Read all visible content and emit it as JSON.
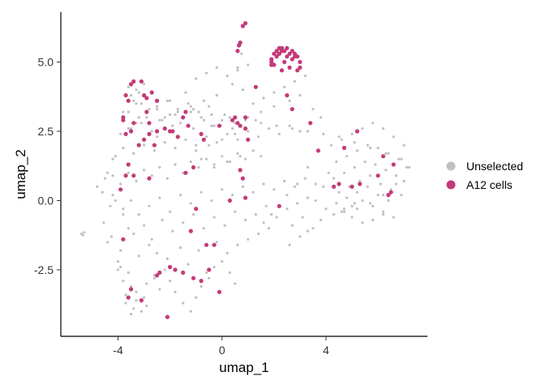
{
  "chart_data": {
    "type": "scatter",
    "title": "",
    "xlabel": "umap_1",
    "ylabel": "umap_2",
    "xlim": [
      -6.2,
      7.9
    ],
    "ylim": [
      -4.9,
      6.8
    ],
    "xticks": [
      {
        "value": -4,
        "label": "-4"
      },
      {
        "value": 0,
        "label": "0"
      },
      {
        "value": 4,
        "label": "4"
      }
    ],
    "yticks": [
      {
        "value": -2.5,
        "label": "-2.5"
      },
      {
        "value": 0,
        "label": "0.0"
      },
      {
        "value": 2.5,
        "label": "2.5"
      },
      {
        "value": 5,
        "label": "5.0"
      }
    ],
    "grid": false,
    "legend_position": "right",
    "legend": [
      {
        "name": "Unselected",
        "color": "#c0c0c0"
      },
      {
        "name": "A12 cells",
        "color": "#c33a7a"
      }
    ],
    "series": [
      {
        "name": "Unselected",
        "color": "#c0c0c0",
        "x": [
          -5.4,
          -5.3,
          -5.35,
          -4.5,
          -4.2,
          -4.6,
          -4.3,
          -4.8,
          -4.4,
          -4.1,
          -4.55,
          -4.25,
          -3.9,
          -4.0,
          -3.6,
          -3.8,
          -3.5,
          -3.3,
          -3.0,
          -3.7,
          -3.4,
          -3.1,
          -3.9,
          -3.2,
          -2.8,
          -2.6,
          -2.4,
          -2.9,
          -3.6,
          -3.8,
          -4.2,
          -4.4,
          -4.0,
          -3.7,
          -3.5,
          -3.3,
          -2.9,
          -2.6,
          -2.2,
          -2.0,
          -1.8,
          -1.5,
          -1.2,
          -1.0,
          -0.8,
          -0.5,
          -0.3,
          0.0,
          0.3,
          0.5,
          -2.5,
          -2.1,
          -1.6,
          -1.3,
          -0.9,
          -0.6,
          -0.2,
          0.2,
          0.6,
          1.0,
          1.4,
          1.8,
          -3.4,
          -3.0,
          -2.7,
          -2.3,
          -1.9,
          -1.5,
          -1.1,
          -0.7,
          -0.3,
          0.1,
          0.5,
          0.9,
          1.3,
          1.7,
          2.1,
          2.5,
          2.9,
          3.3,
          -3.8,
          -3.5,
          -3.2,
          -2.8,
          -2.4,
          -2.0,
          -1.6,
          -1.2,
          -0.8,
          -0.4,
          0.0,
          0.4,
          0.8,
          1.2,
          1.6,
          2.0,
          2.4,
          2.8,
          3.2,
          3.6,
          -4.2,
          -3.9,
          -3.6,
          -3.3,
          -3.0,
          -2.7,
          -2.4,
          -2.1,
          -1.8,
          -1.5,
          -1.2,
          -0.9,
          -0.6,
          -0.3,
          0.0,
          0.3,
          0.6,
          0.9,
          1.2,
          1.5,
          -4.1,
          -3.8,
          -3.4,
          -3.0,
          -2.6,
          -2.2,
          -1.8,
          -1.4,
          -1.0,
          -0.6,
          -0.2,
          0.2,
          0.6,
          1.0,
          1.4,
          1.8,
          2.2,
          2.6,
          3.0,
          3.4,
          -3.9,
          -3.5,
          -3.1,
          -2.7,
          -2.3,
          -1.9,
          -1.5,
          -1.1,
          -0.7,
          -0.3,
          0.1,
          0.5,
          0.9,
          1.3,
          -3.6,
          -3.2,
          -2.8,
          -2.4,
          -2.0,
          -1.6,
          -1.2,
          -0.8,
          -0.4,
          0.0,
          0.4,
          -3.3,
          -2.9,
          -2.5,
          -2.1,
          -1.7,
          -1.3,
          -0.9,
          -0.5,
          -3.6,
          -3.3,
          -3.0,
          -2.7,
          -3.5,
          -3.2,
          -2.9,
          -3.4,
          -3.1,
          -3.8,
          -2.9,
          -3.3,
          -3.6,
          -2.5,
          -1.0,
          -0.5,
          0.0,
          0.5,
          -0.8,
          -0.3,
          0.2,
          0.7,
          1.0,
          1.5,
          2.0,
          2.6,
          3.0,
          3.5,
          3.8,
          1.2,
          1.6,
          2.0,
          2.4,
          2.8,
          3.2,
          0.8,
          0.4,
          -0.2,
          -0.7,
          -1.2,
          -1.7,
          -2.2,
          0.7,
          0.75,
          0.6,
          4.2,
          4.6,
          5.0,
          5.4,
          5.8,
          6.2,
          6.6,
          7.0,
          4.4,
          4.8,
          5.2,
          5.6,
          6.0,
          6.4,
          6.8,
          7.1,
          4.3,
          4.7,
          5.1,
          5.5,
          5.9,
          6.3,
          6.7,
          7.0,
          4.5,
          4.9,
          5.3,
          5.7,
          6.1,
          6.5,
          6.9,
          4.4,
          4.8,
          5.2,
          5.6,
          6.0,
          6.4,
          4.6,
          5.0,
          5.4,
          5.8,
          6.2,
          6.6,
          5.0,
          5.4,
          5.8,
          6.2,
          3.9,
          4.1,
          3.7,
          3.3,
          2.9,
          3.6,
          4.0,
          2.5,
          2.2,
          1.9,
          1.6,
          3.1,
          2.7,
          3.3,
          3.8,
          4.3,
          4.7,
          5.1,
          3.5,
          3.0,
          2.6,
          -1.0,
          -0.6,
          -0.2,
          0.2,
          0.6,
          1.0,
          -1.4,
          -2.0,
          -2.5,
          -1.8,
          -1.1,
          -0.4,
          0.3,
          0.9,
          1.5,
          2.1,
          2.7,
          3.3,
          3.9,
          4.5,
          5.1,
          5.7,
          6.3,
          6.9,
          7.2,
          6.7,
          6.2,
          5.7,
          5.2,
          4.7
        ],
        "y": [
          -1.2,
          -1.15,
          -1.25,
          0.8,
          1.5,
          0.3,
          -0.2,
          0.5,
          1.0,
          0.0,
          -0.8,
          -1.3,
          -1.8,
          -2.2,
          -2.6,
          -2.9,
          -3.1,
          -3.3,
          -3.5,
          -3.7,
          -3.9,
          -4.0,
          -2.4,
          -2.0,
          -1.6,
          -2.8,
          -3.2,
          -3.8,
          -1.0,
          -0.5,
          0.2,
          -1.5,
          -2.5,
          -3.4,
          -4.1,
          -3.6,
          -3.0,
          -2.7,
          -2.5,
          -2.9,
          -3.3,
          -3.7,
          -4.0,
          -3.5,
          -3.1,
          -2.8,
          -2.4,
          -2.2,
          -2.6,
          -3.0,
          -1.9,
          -2.1,
          -1.7,
          -2.3,
          -1.8,
          -2.6,
          -1.5,
          -1.9,
          -1.6,
          -1.4,
          -1.2,
          -1.0,
          -1.2,
          -0.9,
          -1.4,
          -0.7,
          -1.1,
          -0.8,
          -0.5,
          -1.0,
          -0.6,
          -0.9,
          -0.4,
          -0.7,
          -0.5,
          -0.2,
          -0.6,
          -0.3,
          -0.1,
          0.1,
          -0.3,
          0.0,
          -0.5,
          -0.2,
          0.1,
          -0.4,
          0.2,
          -0.1,
          0.3,
          0.0,
          0.4,
          0.2,
          0.5,
          0.3,
          0.6,
          0.4,
          0.7,
          0.5,
          0.8,
          0.6,
          0.9,
          0.6,
          1.0,
          0.7,
          1.1,
          0.9,
          1.2,
          0.8,
          1.3,
          1.0,
          1.4,
          1.2,
          1.5,
          1.3,
          1.6,
          1.4,
          1.7,
          1.5,
          1.8,
          1.6,
          1.6,
          1.9,
          1.7,
          2.0,
          1.8,
          2.1,
          1.9,
          2.2,
          2.0,
          2.3,
          2.1,
          2.4,
          2.2,
          2.5,
          2.3,
          2.6,
          2.4,
          2.7,
          2.5,
          2.8,
          2.4,
          2.6,
          2.8,
          2.5,
          2.9,
          2.7,
          3.0,
          2.6,
          2.9,
          2.7,
          3.1,
          2.8,
          3.0,
          2.9,
          3.2,
          3.0,
          3.3,
          2.9,
          3.1,
          2.8,
          3.2,
          3.0,
          2.7,
          2.9,
          2.6,
          3.5,
          3.7,
          3.4,
          3.6,
          3.3,
          3.5,
          3.2,
          3.4,
          4.1,
          4.0,
          4.2,
          3.9,
          3.8,
          3.9,
          3.7,
          3.6,
          3.5,
          3.2,
          3.0,
          2.8,
          2.6,
          2.3,
          1.8,
          2.0,
          2.2,
          2.4,
          1.5,
          1.2,
          1.4,
          1.6,
          3.0,
          3.2,
          3.4,
          3.6,
          3.8,
          3.3,
          3.0,
          3.5,
          3.7,
          3.9,
          4.1,
          4.3,
          4.5,
          4.0,
          4.2,
          3.8,
          3.6,
          3.4,
          3.2,
          3.0,
          5.6,
          5.3,
          4.8,
          2.0,
          2.2,
          2.4,
          2.6,
          2.8,
          2.6,
          2.3,
          2.0,
          1.4,
          1.6,
          1.8,
          2.0,
          1.9,
          1.7,
          1.5,
          1.2,
          0.8,
          1.0,
          1.2,
          1.4,
          1.3,
          1.1,
          0.9,
          0.7,
          0.3,
          0.5,
          0.7,
          0.9,
          0.6,
          0.4,
          0.2,
          -0.1,
          0.1,
          0.3,
          0.5,
          0.2,
          0.0,
          -0.4,
          -0.2,
          0.0,
          -0.2,
          -0.4,
          -0.6,
          -0.6,
          -0.8,
          -0.7,
          -0.5,
          0.5,
          1.0,
          1.8,
          1.2,
          0.6,
          0.0,
          -0.3,
          0.2,
          -0.2,
          -0.5,
          -0.8,
          -0.6,
          -0.9,
          -1.1,
          -0.7,
          -0.5,
          -0.3,
          -0.1,
          -1.0,
          -1.3,
          -1.6,
          4.4,
          4.6,
          4.8,
          4.5,
          4.7,
          4.9,
          3.9,
          3.6,
          3.3,
          3.1,
          3.3,
          3.1,
          3.0,
          2.9,
          2.8,
          2.7,
          2.6,
          2.5,
          2.4,
          2.3,
          2.1,
          1.9,
          1.7,
          1.5,
          1.2,
          0.6,
          0.2,
          -0.1,
          -0.3,
          -0.4
        ]
      },
      {
        "name": "A12 cells",
        "color": "#c33a7a",
        "x": [
          0.7,
          0.8,
          0.9,
          0.6,
          0.65,
          1.9,
          2.0,
          2.1,
          2.2,
          2.3,
          2.4,
          2.5,
          2.6,
          2.7,
          2.8,
          2.9,
          3.0,
          3.0,
          2.9,
          2.1,
          2.0,
          1.9,
          2.2,
          2.3,
          2.5,
          2.7,
          2.8,
          2.4,
          2.6,
          2.2,
          1.9,
          -3.5,
          -3.4,
          -3.1,
          -3.0,
          -2.9,
          -2.7,
          -3.6,
          -3.7,
          -2.5,
          -2.9,
          -3.8,
          -3.5,
          -3.8,
          -3.7,
          -3.4,
          -2.8,
          -1.5,
          -1.4,
          -1.9,
          -2.0,
          -1.7,
          -1.3,
          -0.7,
          -0.1,
          0.4,
          0.5,
          0.6,
          0.7,
          0.9,
          -0.8,
          1.0,
          1.3,
          2.7,
          2.5,
          2.3,
          3.4,
          3.7,
          4.7,
          4.5,
          5.2,
          5.3,
          6.2,
          6.6,
          6.4,
          -3.6,
          -3.4,
          -3.7,
          -2.8,
          -1.4,
          -1.1,
          -1.0,
          -1.2,
          -0.6,
          -0.3,
          0.7,
          0.8,
          0.9,
          2.2,
          -2.0,
          -1.8,
          -2.4,
          -2.5,
          -1.5,
          -1.1,
          -0.8,
          -0.5,
          -0.1,
          -3.5,
          -3.6,
          -3.1,
          -2.1,
          -3.9,
          -3.8,
          4.3,
          5.0,
          6.0,
          6.5,
          -2.5,
          -2.2,
          -3.2,
          -3.0,
          -2.8,
          -2.6,
          0.3,
          0.9
        ],
        "y": [
          5.7,
          6.3,
          6.4,
          5.4,
          5.6,
          5.1,
          5.3,
          5.4,
          5.5,
          5.5,
          5.4,
          5.5,
          5.3,
          5.4,
          5.3,
          5.2,
          5.0,
          4.8,
          4.7,
          5.2,
          4.9,
          5.0,
          5.3,
          5.4,
          5.2,
          5.1,
          5.2,
          5.0,
          4.8,
          5.3,
          4.9,
          4.2,
          4.3,
          4.3,
          3.8,
          3.7,
          3.9,
          3.6,
          3.8,
          3.6,
          3.2,
          3.0,
          2.5,
          2.9,
          2.4,
          2.8,
          2.8,
          3.0,
          3.2,
          2.5,
          2.5,
          2.3,
          2.7,
          2.2,
          2.7,
          2.9,
          3.0,
          2.8,
          2.7,
          3.0,
          2.4,
          2.2,
          4.1,
          3.3,
          3.8,
          4.7,
          2.8,
          1.8,
          1.9,
          0.6,
          2.5,
          0.6,
          1.6,
          1.3,
          0.2,
          1.3,
          0.9,
          0.9,
          0.8,
          1.0,
          1.2,
          -0.3,
          -1.1,
          -1.6,
          -1.6,
          1.1,
          0.8,
          0.1,
          -0.2,
          -2.4,
          -2.5,
          -2.6,
          -2.7,
          -2.6,
          -2.8,
          -2.9,
          -2.5,
          -3.3,
          -3.2,
          -3.5,
          -3.6,
          -4.2,
          0.4,
          -1.4,
          0.5,
          0.5,
          0.9,
          0.3,
          2.5,
          2.6,
          2.0,
          2.2,
          2.4,
          2.0,
          0.0,
          2.6
        ]
      }
    ]
  }
}
